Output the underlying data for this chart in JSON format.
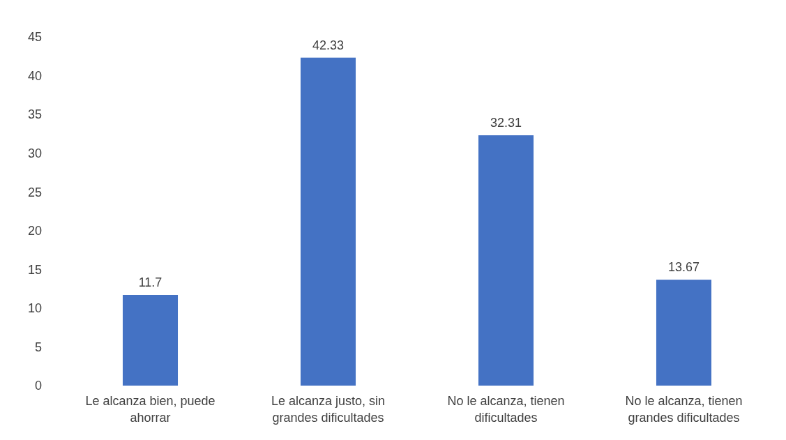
{
  "chart_data": {
    "type": "bar",
    "categories": [
      "Le alcanza bien, puede ahorrar",
      "Le alcanza justo, sin grandes dificultades",
      "No le alcanza, tienen dificultades",
      "No le alcanza, tienen grandes dificultades"
    ],
    "values": [
      11.7,
      42.33,
      32.31,
      13.67
    ],
    "color": "#4472c4",
    "ylim": [
      0,
      45
    ],
    "yticks": [
      0,
      5,
      10,
      15,
      20,
      25,
      30,
      35,
      40,
      45
    ],
    "data_labels": true,
    "grid": false
  }
}
